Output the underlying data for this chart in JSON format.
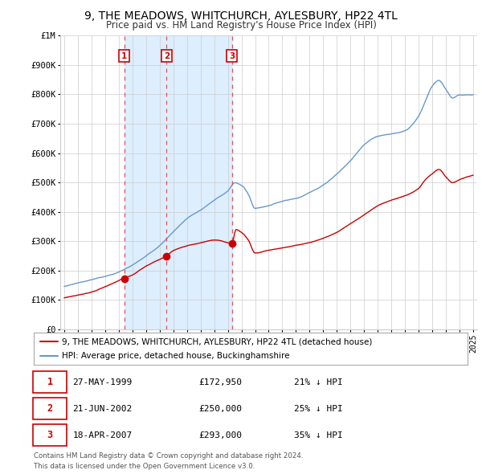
{
  "title": "9, THE MEADOWS, WHITCHURCH, AYLESBURY, HP22 4TL",
  "subtitle": "Price paid vs. HM Land Registry's House Price Index (HPI)",
  "title_fontsize": 10,
  "subtitle_fontsize": 8.5,
  "legend_line1": "9, THE MEADOWS, WHITCHURCH, AYLESBURY, HP22 4TL (detached house)",
  "legend_line2": "HPI: Average price, detached house, Buckinghamshire",
  "footer1": "Contains HM Land Registry data © Crown copyright and database right 2024.",
  "footer2": "This data is licensed under the Open Government Licence v3.0.",
  "purchases": [
    {
      "num": 1,
      "date": "27-MAY-1999",
      "price": "£172,950",
      "hpi": "21% ↓ HPI",
      "x_year": 1999.4
    },
    {
      "num": 2,
      "date": "21-JUN-2002",
      "price": "£250,000",
      "hpi": "25% ↓ HPI",
      "x_year": 2002.5
    },
    {
      "num": 3,
      "date": "18-APR-2007",
      "price": "£293,000",
      "hpi": "35% ↓ HPI",
      "x_year": 2007.3
    }
  ],
  "purchase_prices": [
    172950,
    250000,
    293000
  ],
  "red_color": "#cc0000",
  "blue_color": "#6699cc",
  "shade_color": "#ddeeff",
  "bg_color": "#ffffff",
  "grid_color": "#cccccc",
  "ylim": [
    0,
    1000000
  ],
  "xlim_start": 1994.7,
  "xlim_end": 2025.3
}
